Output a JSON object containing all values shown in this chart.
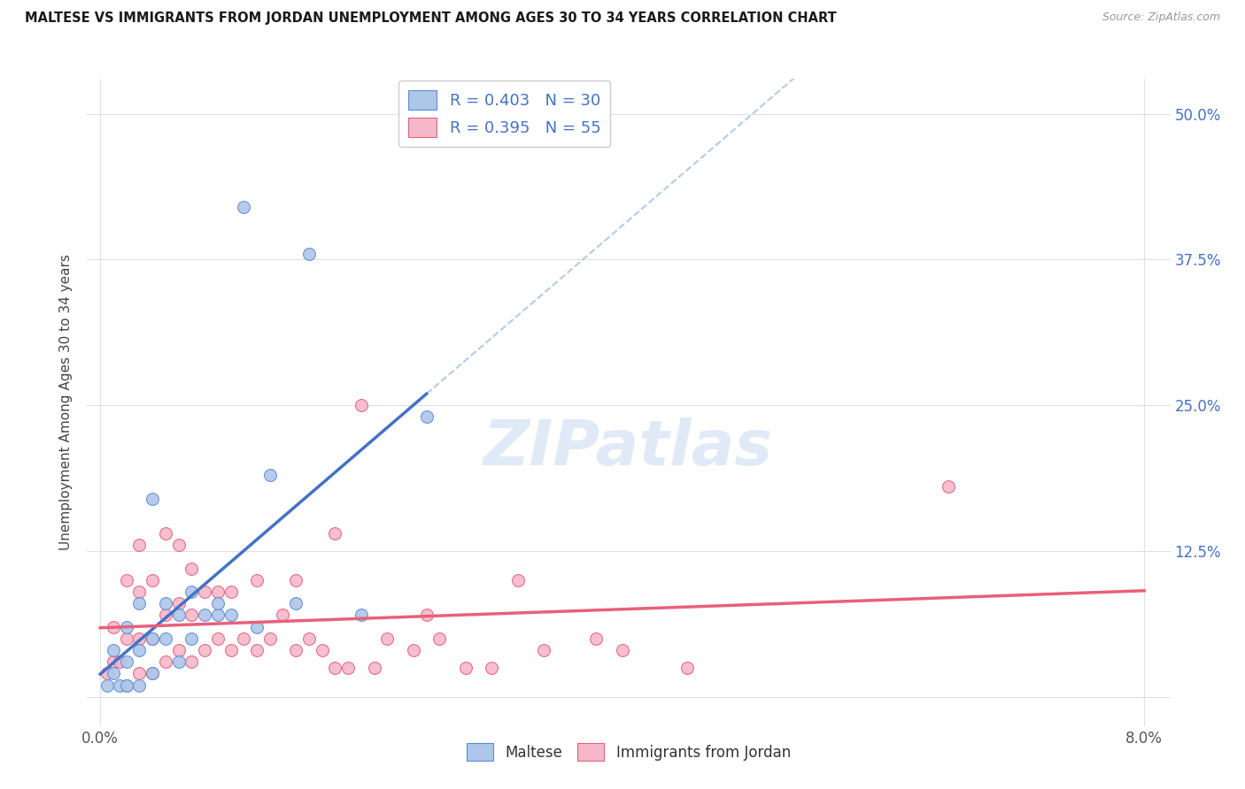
{
  "title": "MALTESE VS IMMIGRANTS FROM JORDAN UNEMPLOYMENT AMONG AGES 30 TO 34 YEARS CORRELATION CHART",
  "source": "Source: ZipAtlas.com",
  "ylabel": "Unemployment Among Ages 30 to 34 years",
  "y_ticks_right": [
    0.0,
    0.125,
    0.25,
    0.375,
    0.5
  ],
  "y_tick_labels_right": [
    "",
    "12.5%",
    "25.0%",
    "37.5%",
    "50.0%"
  ],
  "x_tick_vals": [
    0.0,
    0.08
  ],
  "x_tick_labels": [
    "0.0%",
    "8.0%"
  ],
  "xlim": [
    -0.001,
    0.082
  ],
  "ylim": [
    -0.025,
    0.53
  ],
  "maltese_color": "#aec6e8",
  "jordan_color": "#f5b8cb",
  "maltese_edge_color": "#5b8dd9",
  "jordan_edge_color": "#e8607a",
  "maltese_line_color": "#4472c4",
  "jordan_line_color": "#e8607a",
  "dashed_line_color": "#b0cce8",
  "right_axis_color": "#4472c4",
  "legend_maltese_R": "0.403",
  "legend_maltese_N": "30",
  "legend_jordan_R": "0.395",
  "legend_jordan_N": "55",
  "maltese_x": [
    0.0005,
    0.001,
    0.001,
    0.0015,
    0.002,
    0.002,
    0.002,
    0.003,
    0.003,
    0.003,
    0.004,
    0.004,
    0.004,
    0.005,
    0.005,
    0.006,
    0.006,
    0.007,
    0.007,
    0.008,
    0.009,
    0.009,
    0.01,
    0.011,
    0.012,
    0.013,
    0.015,
    0.016,
    0.02,
    0.025
  ],
  "maltese_y": [
    0.01,
    0.02,
    0.04,
    0.01,
    0.01,
    0.03,
    0.06,
    0.01,
    0.04,
    0.08,
    0.02,
    0.05,
    0.17,
    0.05,
    0.08,
    0.03,
    0.07,
    0.05,
    0.09,
    0.07,
    0.07,
    0.08,
    0.07,
    0.42,
    0.06,
    0.19,
    0.08,
    0.38,
    0.07,
    0.24
  ],
  "jordan_x": [
    0.0005,
    0.001,
    0.001,
    0.0015,
    0.002,
    0.002,
    0.002,
    0.003,
    0.003,
    0.003,
    0.003,
    0.004,
    0.004,
    0.004,
    0.005,
    0.005,
    0.005,
    0.006,
    0.006,
    0.006,
    0.007,
    0.007,
    0.007,
    0.008,
    0.008,
    0.009,
    0.009,
    0.01,
    0.01,
    0.011,
    0.012,
    0.012,
    0.013,
    0.014,
    0.015,
    0.015,
    0.016,
    0.017,
    0.018,
    0.018,
    0.019,
    0.02,
    0.021,
    0.022,
    0.024,
    0.025,
    0.026,
    0.028,
    0.03,
    0.032,
    0.034,
    0.038,
    0.04,
    0.045,
    0.065
  ],
  "jordan_y": [
    0.02,
    0.03,
    0.06,
    0.03,
    0.01,
    0.05,
    0.1,
    0.02,
    0.05,
    0.09,
    0.13,
    0.02,
    0.05,
    0.1,
    0.03,
    0.07,
    0.14,
    0.04,
    0.08,
    0.13,
    0.03,
    0.07,
    0.11,
    0.04,
    0.09,
    0.05,
    0.09,
    0.04,
    0.09,
    0.05,
    0.04,
    0.1,
    0.05,
    0.07,
    0.04,
    0.1,
    0.05,
    0.04,
    0.025,
    0.14,
    0.025,
    0.25,
    0.025,
    0.05,
    0.04,
    0.07,
    0.05,
    0.025,
    0.025,
    0.1,
    0.04,
    0.05,
    0.04,
    0.025,
    0.18
  ],
  "watermark_text": "ZIPatlas",
  "background_color": "#ffffff",
  "grid_color": "#e0e0e0"
}
